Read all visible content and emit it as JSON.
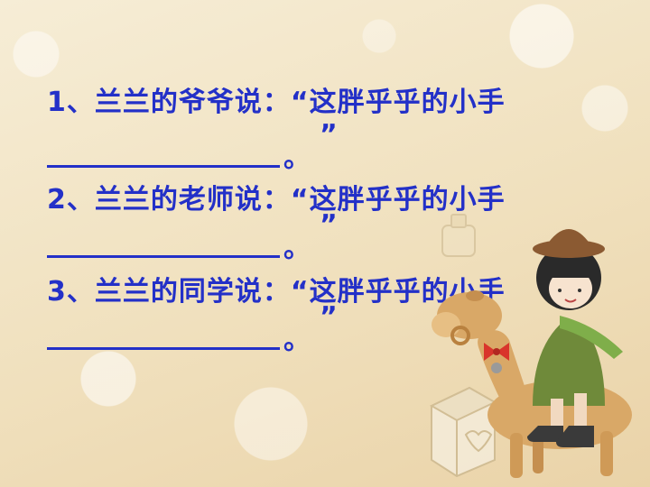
{
  "questions": [
    {
      "prompt": "1、兰兰的爷爷说：“这胖乎乎的小手",
      "period": "。",
      "close_quote": "”"
    },
    {
      "prompt": "2、兰兰的老师说：“这胖乎乎的小手",
      "period": "。",
      "close_quote": "”"
    },
    {
      "prompt": "3、兰兰的同学说：“这胖乎乎的小手",
      "period": "。",
      "close_quote": "”"
    }
  ],
  "colors": {
    "text": "#2330c8"
  }
}
